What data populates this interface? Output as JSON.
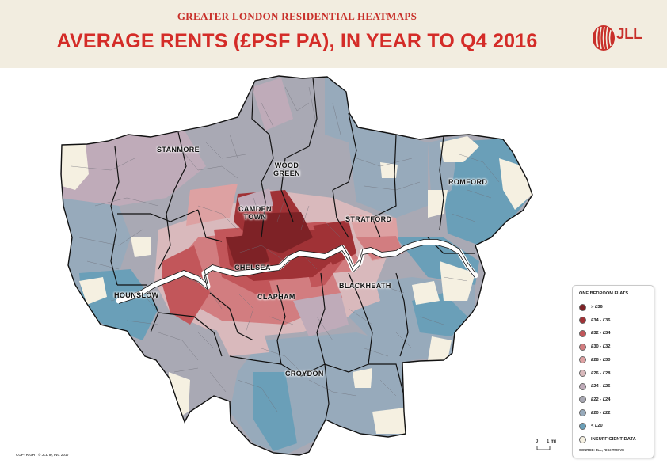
{
  "header": {
    "subtitle": "GREATER LONDON RESIDENTIAL HEATMAPS",
    "title": "AVERAGE RENTS (£PSF PA), IN YEAR TO Q4 2016",
    "logo_text": "JLL"
  },
  "colors": {
    "header_bg": "#f2ede0",
    "title_red": "#d42c28",
    "thames": "#ffffff"
  },
  "places": [
    {
      "key": "stanmore",
      "text": "STANMORE"
    },
    {
      "key": "wood_green",
      "text": "WOOD\nGREEN"
    },
    {
      "key": "romford",
      "text": "ROMFORD"
    },
    {
      "key": "camden",
      "text": "CAMDEN\nTOWN"
    },
    {
      "key": "stratford",
      "text": "STRATFORD"
    },
    {
      "key": "chelsea",
      "text": "CHELSEA"
    },
    {
      "key": "blackheath",
      "text": "BLACKHEATH"
    },
    {
      "key": "hounslow",
      "text": "HOUNSLOW"
    },
    {
      "key": "clapham",
      "text": "CLAPHAM"
    },
    {
      "key": "croydon",
      "text": "CROYDON"
    }
  ],
  "legend": {
    "title": "ONE BEDROOM FLATS",
    "items": [
      {
        "label": "> £36",
        "color": "#7e2226"
      },
      {
        "label": "£34 - £36",
        "color": "#a03236"
      },
      {
        "label": "£32 - £34",
        "color": "#c2565a"
      },
      {
        "label": "£30 - £32",
        "color": "#d27d80"
      },
      {
        "label": "£28 - £30",
        "color": "#dda1a2"
      },
      {
        "label": "£26 - £28",
        "color": "#d9b9bc"
      },
      {
        "label": "£24 - £26",
        "color": "#bfabb9"
      },
      {
        "label": "£22 - £24",
        "color": "#a9a9b4"
      },
      {
        "label": "£20 - £22",
        "color": "#97aabb"
      },
      {
        "label": "< £20",
        "color": "#6a9fb8"
      },
      {
        "label": "INSUFFICIENT DATA",
        "color": "#f5f0e1"
      }
    ],
    "source": "SOURCE: JLL, RIGHTMOVE"
  },
  "scale": {
    "zero": "0",
    "one": "1 mi"
  },
  "copyright": "COPYRIGHT © JLL IP, INC 2017"
}
